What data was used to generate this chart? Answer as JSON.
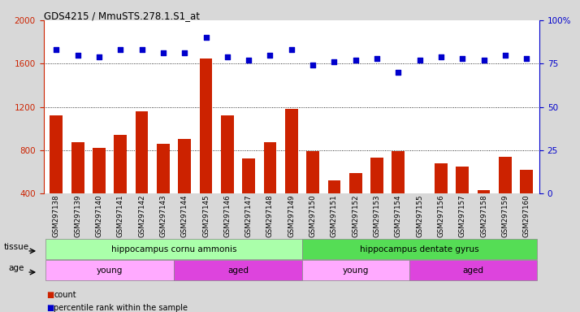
{
  "title": "GDS4215 / MmuSTS.278.1.S1_at",
  "samples": [
    "GSM297138",
    "GSM297139",
    "GSM297140",
    "GSM297141",
    "GSM297142",
    "GSM297143",
    "GSM297144",
    "GSM297145",
    "GSM297146",
    "GSM297147",
    "GSM297148",
    "GSM297149",
    "GSM297150",
    "GSM297151",
    "GSM297152",
    "GSM297153",
    "GSM297154",
    "GSM297155",
    "GSM297156",
    "GSM297157",
    "GSM297158",
    "GSM297159",
    "GSM297160"
  ],
  "counts": [
    1120,
    870,
    820,
    940,
    1160,
    860,
    900,
    1650,
    1120,
    720,
    870,
    1180,
    790,
    520,
    590,
    730,
    790,
    360,
    680,
    650,
    430,
    740,
    620
  ],
  "percentile": [
    83,
    80,
    79,
    83,
    83,
    81,
    81,
    90,
    79,
    77,
    80,
    83,
    74,
    76,
    77,
    78,
    70,
    77,
    79,
    78,
    77,
    80,
    78
  ],
  "bar_color": "#cc2200",
  "dot_color": "#0000cc",
  "ylim_left": [
    400,
    2000
  ],
  "ylim_right": [
    0,
    100
  ],
  "yticks_left": [
    400,
    800,
    1200,
    1600,
    2000
  ],
  "yticks_right": [
    0,
    25,
    50,
    75,
    100
  ],
  "grid_values": [
    800,
    1200,
    1600
  ],
  "tissue_groups": [
    {
      "label": "hippocampus cornu ammonis",
      "start": 0,
      "end": 12,
      "color": "#aaffaa"
    },
    {
      "label": "hippocampus dentate gyrus",
      "start": 12,
      "end": 23,
      "color": "#55dd55"
    }
  ],
  "age_groups": [
    {
      "label": "young",
      "start": 0,
      "end": 6,
      "color": "#ffaaff"
    },
    {
      "label": "aged",
      "start": 6,
      "end": 12,
      "color": "#dd44dd"
    },
    {
      "label": "young",
      "start": 12,
      "end": 17,
      "color": "#ffaaff"
    },
    {
      "label": "aged",
      "start": 17,
      "end": 23,
      "color": "#dd44dd"
    }
  ],
  "bg_color": "#d8d8d8",
  "plot_bg_color": "#ffffff"
}
